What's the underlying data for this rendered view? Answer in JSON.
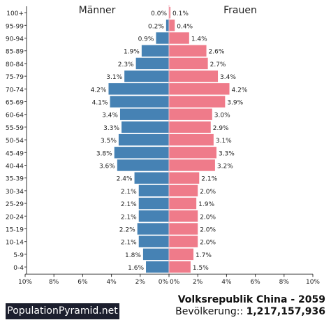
{
  "chart_data": {
    "type": "population-pyramid",
    "left_label": "Männer",
    "right_label": "Frauen",
    "categories": [
      "100+",
      "95-99",
      "90-94",
      "85-89",
      "80-84",
      "75-79",
      "70-74",
      "65-69",
      "60-64",
      "55-59",
      "50-54",
      "45-49",
      "40-44",
      "35-39",
      "30-34",
      "25-29",
      "20-24",
      "15-19",
      "10-14",
      "5-9",
      "0-4"
    ],
    "series": [
      {
        "name": "Männer",
        "values": [
          0.0,
          0.2,
          0.9,
          1.9,
          2.3,
          3.1,
          4.2,
          4.1,
          3.4,
          3.3,
          3.5,
          3.8,
          3.6,
          2.4,
          2.1,
          2.1,
          2.1,
          2.2,
          2.1,
          1.8,
          1.6
        ],
        "labels": [
          "0.0%",
          "0.2%",
          "0.9%",
          "1.9%",
          "2.3%",
          "3.1%",
          "4.2%",
          "4.1%",
          "3.4%",
          "3.3%",
          "3.5%",
          "3.8%",
          "3.6%",
          "2.4%",
          "2.1%",
          "2.1%",
          "2.1%",
          "2.2%",
          "2.1%",
          "1.8%",
          "1.6%"
        ]
      },
      {
        "name": "Frauen",
        "values": [
          0.1,
          0.4,
          1.4,
          2.6,
          2.7,
          3.4,
          4.2,
          3.9,
          3.0,
          2.9,
          3.1,
          3.3,
          3.2,
          2.1,
          2.0,
          1.9,
          2.0,
          2.0,
          2.0,
          1.7,
          1.5
        ],
        "labels": [
          "0.1%",
          "0.4%",
          "1.4%",
          "2.6%",
          "2.7%",
          "3.4%",
          "4.2%",
          "3.9%",
          "3.0%",
          "2.9%",
          "3.1%",
          "3.3%",
          "3.2%",
          "2.1%",
          "2.0%",
          "1.9%",
          "2.0%",
          "2.0%",
          "2.0%",
          "1.7%",
          "1.5%"
        ]
      }
    ],
    "x_ticks_left": [
      "10%",
      "8%",
      "6%",
      "4%",
      "2%",
      "0%"
    ],
    "x_ticks_right": [
      "0%",
      "2%",
      "4%",
      "6%",
      "8%",
      "10%"
    ],
    "xlim": [
      0,
      10
    ],
    "colors": {
      "male": "#4682b4",
      "female": "#ef7b8a",
      "axis": "#333333"
    }
  },
  "footer": {
    "brand": "PopulationPyramid.net",
    "title": "Volksrepublik China - 2059",
    "population_label": "Bevölkerung::",
    "population_value": "1,217,157,936"
  }
}
